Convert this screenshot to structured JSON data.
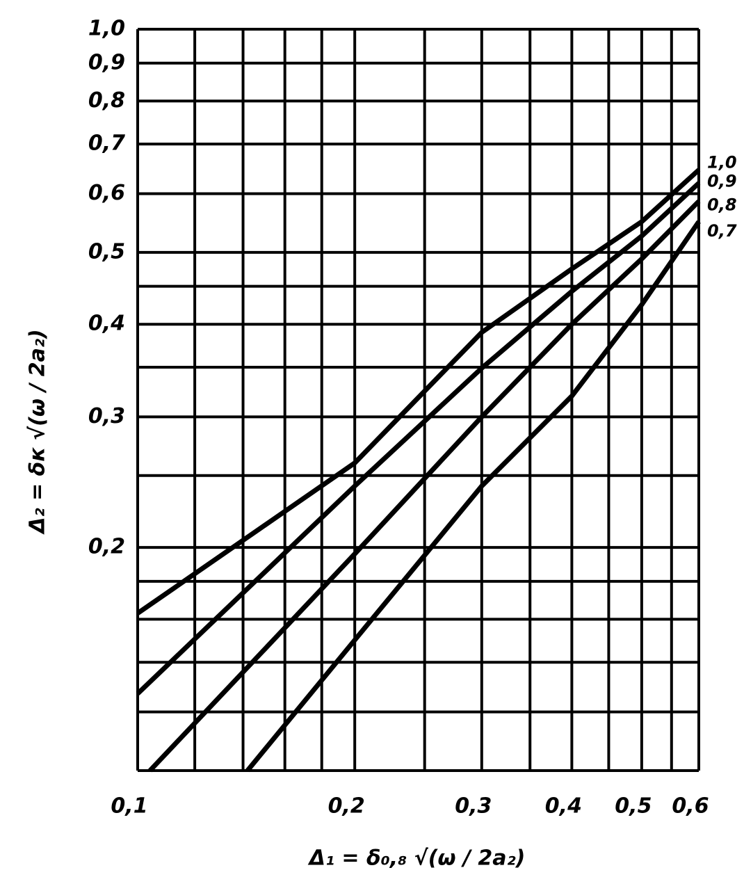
{
  "chart_data": {
    "type": "line",
    "log_x": true,
    "log_y": true,
    "grid": true,
    "xlabel": "Δ₁ = δ₀,₈ √(ω / 2a₂)",
    "ylabel": "Δ₂ = δк √(ω / 2a₂)",
    "xlim": [
      0.1,
      0.6
    ],
    "ylim": [
      0.1,
      1.0
    ],
    "xticks": [
      {
        "value": 0.1,
        "label": "0,1"
      },
      {
        "value": 0.2,
        "label": "0,2"
      },
      {
        "value": 0.3,
        "label": "0,3"
      },
      {
        "value": 0.4,
        "label": "0,4"
      },
      {
        "value": 0.5,
        "label": "0,5"
      },
      {
        "value": 0.6,
        "label": "0,6"
      }
    ],
    "yticks": [
      {
        "value": 0.2,
        "label": "0,2"
      },
      {
        "value": 0.3,
        "label": "0,3"
      },
      {
        "value": 0.4,
        "label": "0,4"
      },
      {
        "value": 0.5,
        "label": "0,5"
      },
      {
        "value": 0.6,
        "label": "0,6"
      },
      {
        "value": 0.7,
        "label": "0,7"
      },
      {
        "value": 0.8,
        "label": "0,8"
      },
      {
        "value": 0.9,
        "label": "0,9"
      },
      {
        "value": 1.0,
        "label": "1,0"
      }
    ],
    "xminor": [
      0.12,
      0.14,
      0.16,
      0.18,
      0.25,
      0.35,
      0.45,
      0.55
    ],
    "yminor": [
      0.1,
      0.12,
      0.14,
      0.16,
      0.18,
      0.25,
      0.35,
      0.45
    ],
    "series": [
      {
        "name": "1,0",
        "color": "#000000",
        "x": [
          0.1,
          0.2,
          0.3,
          0.4,
          0.5,
          0.6
        ],
        "values": [
          0.163,
          0.26,
          0.39,
          0.475,
          0.55,
          0.646
        ]
      },
      {
        "name": "0,9",
        "color": "#000000",
        "x": [
          0.1,
          0.2,
          0.3,
          0.4,
          0.5,
          0.6
        ],
        "values": [
          0.127,
          0.242,
          0.349,
          0.443,
          0.526,
          0.62
        ]
      },
      {
        "name": "0,8",
        "color": "#000000",
        "x": [
          0.104,
          0.2,
          0.3,
          0.4,
          0.5,
          0.6
        ],
        "values": [
          0.1,
          0.196,
          0.3,
          0.4,
          0.49,
          0.586
        ]
      },
      {
        "name": "0,7",
        "color": "#000000",
        "x": [
          0.142,
          0.2,
          0.3,
          0.4,
          0.5,
          0.6
        ],
        "values": [
          0.1,
          0.15,
          0.242,
          0.32,
          0.425,
          0.55
        ]
      }
    ]
  }
}
